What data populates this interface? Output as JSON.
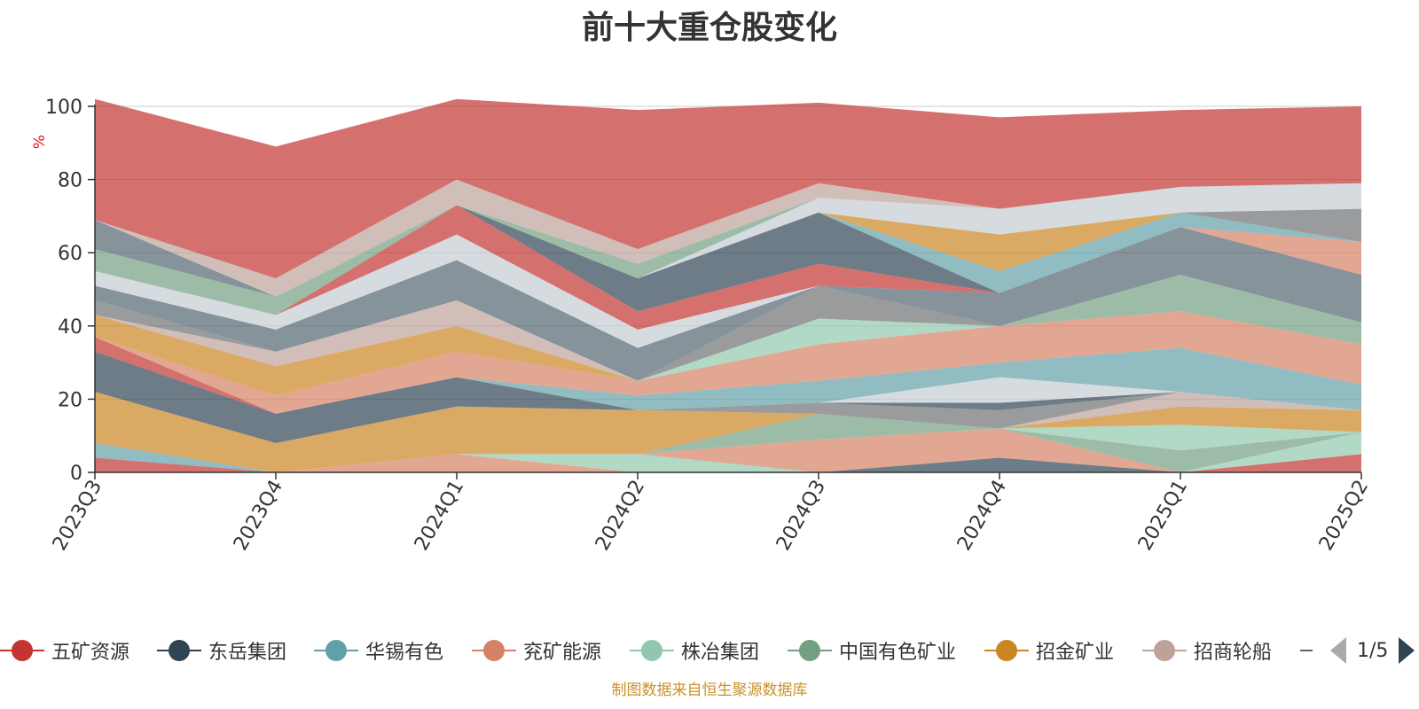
{
  "title": "前十大重仓股变化",
  "source_note": "制图数据来自恒生聚源数据库",
  "legend_page": "1/5",
  "chart_data": {
    "type": "area",
    "title": "前十大重仓股变化",
    "ylabel": "%",
    "ylim": [
      0,
      100
    ],
    "yticks": [
      0,
      20,
      40,
      60,
      80,
      100
    ],
    "categories": [
      "2023Q3",
      "2023Q4",
      "2024Q1",
      "2024Q2",
      "2024Q3",
      "2024Q4",
      "2025Q1",
      "2025Q2"
    ],
    "grid": true,
    "legend_position": "bottom",
    "legend": [
      {
        "name": "五矿资源",
        "color": "#c23531"
      },
      {
        "name": "东岳集团",
        "color": "#2f4554"
      },
      {
        "name": "华锡有色",
        "color": "#61a0a8"
      },
      {
        "name": "兖矿能源",
        "color": "#d48265"
      },
      {
        "name": "株冶集团",
        "color": "#91c7ae"
      },
      {
        "name": "中国有色矿业",
        "color": "#749f83"
      },
      {
        "name": "招金矿业",
        "color": "#ca8622"
      },
      {
        "name": "招商轮船",
        "color": "#bda29a"
      }
    ],
    "series": [
      {
        "color": "#c23531",
        "values": [
          4,
          0,
          0,
          0,
          0,
          0,
          0,
          5
        ]
      },
      {
        "color": "#61a0a8",
        "values": [
          4,
          0,
          0,
          0,
          0,
          0,
          0,
          0
        ]
      },
      {
        "color": "#d48265",
        "values": [
          0,
          0,
          5,
          0,
          0,
          0,
          0,
          0
        ]
      },
      {
        "color": "#2f4554",
        "values": [
          0,
          0,
          0,
          0,
          0,
          4,
          0,
          0
        ]
      },
      {
        "color": "#91c7ae",
        "values": [
          0,
          0,
          0,
          5,
          0,
          0,
          0,
          6
        ]
      },
      {
        "color": "#d48265",
        "values": [
          0,
          0,
          0,
          0,
          9,
          8,
          0,
          0
        ]
      },
      {
        "color": "#749f83",
        "values": [
          0,
          0,
          0,
          0,
          7,
          0,
          6,
          0
        ]
      },
      {
        "color": "#91c7ae",
        "values": [
          0,
          0,
          0,
          0,
          0,
          0,
          7,
          0
        ]
      },
      {
        "color": "#ca8622",
        "values": [
          14,
          8,
          13,
          12,
          0,
          0,
          5,
          6
        ]
      },
      {
        "color": "#ca8622",
        "values": [
          0,
          0,
          0,
          0,
          0,
          0,
          0,
          0
        ]
      },
      {
        "color": "#bda29a",
        "values": [
          0,
          0,
          0,
          0,
          0,
          0,
          4,
          0
        ]
      },
      {
        "color": "#91c7ae",
        "values": [
          0,
          0,
          0,
          0,
          0,
          0,
          0,
          0
        ]
      },
      {
        "color": "#6e7074",
        "values": [
          0,
          0,
          0,
          0,
          3,
          5,
          0,
          0
        ]
      },
      {
        "color": "#2f4554",
        "values": [
          0,
          0,
          0,
          0,
          0,
          2,
          0,
          0
        ]
      },
      {
        "color": "#c4ccd3",
        "values": [
          0,
          0,
          0,
          0,
          0,
          7,
          0,
          0
        ]
      },
      {
        "color": "#2f4554",
        "values": [
          11,
          8,
          8,
          0,
          0,
          0,
          0,
          0
        ]
      },
      {
        "color": "#c23531",
        "values": [
          4,
          0,
          0,
          0,
          0,
          0,
          0,
          0
        ]
      },
      {
        "color": "#61a0a8",
        "values": [
          0,
          0,
          0,
          4,
          6,
          4,
          12,
          7
        ]
      },
      {
        "color": "#d48265",
        "values": [
          0,
          5,
          7,
          4,
          10,
          10,
          10,
          11
        ]
      },
      {
        "color": "#ca8622",
        "values": [
          6,
          8,
          7,
          0,
          0,
          0,
          0,
          0
        ]
      },
      {
        "color": "#91c7ae",
        "values": [
          0,
          0,
          0,
          0,
          7,
          0,
          0,
          0
        ]
      },
      {
        "color": "#bda29a",
        "values": [
          0,
          4,
          7,
          0,
          0,
          0,
          0,
          0
        ]
      },
      {
        "color": "#749f83",
        "values": [
          0,
          0,
          0,
          0,
          0,
          0,
          10,
          6
        ]
      },
      {
        "color": "#6e7074",
        "values": [
          4,
          0,
          0,
          0,
          9,
          0,
          0,
          0
        ]
      },
      {
        "color": "#546570",
        "values": [
          4,
          6,
          11,
          9,
          0,
          9,
          13,
          13
        ]
      },
      {
        "color": "#c4ccd3",
        "values": [
          4,
          4,
          7,
          5,
          0,
          0,
          0,
          0
        ]
      },
      {
        "color": "#c23531",
        "values": [
          0,
          0,
          8,
          5,
          6,
          0,
          0,
          0
        ]
      },
      {
        "color": "#2f4554",
        "values": [
          0,
          0,
          0,
          9,
          14,
          0,
          0,
          0
        ]
      },
      {
        "color": "#d48265",
        "values": [
          0,
          0,
          0,
          0,
          0,
          0,
          0,
          9
        ]
      },
      {
        "color": "#61a0a8",
        "values": [
          0,
          0,
          0,
          0,
          0,
          6,
          4,
          0
        ]
      },
      {
        "color": "#ca8622",
        "values": [
          0,
          0,
          0,
          0,
          0,
          10,
          0,
          0
        ]
      },
      {
        "color": "#6e7074",
        "values": [
          0,
          0,
          0,
          0,
          0,
          0,
          0,
          9
        ]
      },
      {
        "color": "#c4ccd3",
        "values": [
          0,
          0,
          0,
          0,
          4,
          7,
          7,
          7
        ]
      },
      {
        "color": "#749f83",
        "values": [
          6,
          5,
          0,
          4,
          0,
          0,
          0,
          0
        ]
      },
      {
        "color": "#546570",
        "values": [
          8,
          0,
          0,
          0,
          0,
          0,
          0,
          0
        ]
      },
      {
        "color": "#bda29a",
        "values": [
          0,
          5,
          7,
          4,
          4,
          0,
          0,
          0
        ]
      },
      {
        "color": "#c23531",
        "values": [
          33,
          36,
          22,
          38,
          22,
          25,
          21,
          21
        ]
      }
    ]
  }
}
